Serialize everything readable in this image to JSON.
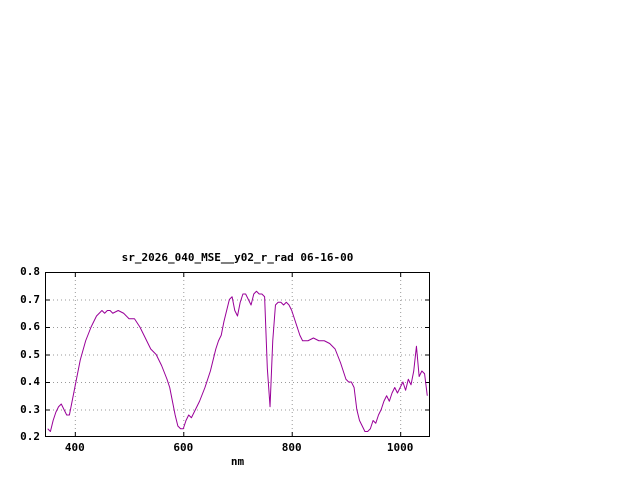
{
  "colors": {
    "line": "#990099",
    "grid": "#9a9a9a",
    "axis": "#000000",
    "background": "#ffffff",
    "text": "#000000"
  },
  "chart_data": {
    "type": "line",
    "title": "sr_2026_040_MSE__y02_r_rad 06-16-00",
    "xlabel": "nm",
    "ylabel": "",
    "xlim": [
      345,
      1055
    ],
    "ylim": [
      0.2,
      0.8
    ],
    "xticks": [
      400,
      600,
      800,
      1000
    ],
    "yticks": [
      0.2,
      0.3,
      0.4,
      0.5,
      0.6,
      0.7,
      0.8
    ],
    "grid": true,
    "legend": "none",
    "series": [
      {
        "name": "sr_2026_040_MSE__y02_r_rad 06-16-00",
        "color": "#990099",
        "x": [
          350,
          355,
          360,
          365,
          370,
          375,
          380,
          385,
          390,
          395,
          400,
          410,
          420,
          430,
          440,
          450,
          455,
          460,
          465,
          470,
          480,
          490,
          500,
          510,
          520,
          530,
          540,
          550,
          560,
          570,
          575,
          580,
          585,
          590,
          595,
          600,
          605,
          610,
          615,
          620,
          630,
          640,
          650,
          660,
          665,
          670,
          675,
          680,
          685,
          690,
          695,
          700,
          705,
          710,
          715,
          720,
          725,
          730,
          735,
          740,
          745,
          750,
          755,
          760,
          765,
          770,
          775,
          780,
          785,
          790,
          795,
          800,
          805,
          810,
          815,
          820,
          830,
          840,
          850,
          860,
          870,
          880,
          890,
          900,
          905,
          910,
          915,
          920,
          925,
          930,
          935,
          940,
          945,
          950,
          955,
          960,
          965,
          970,
          975,
          980,
          985,
          990,
          995,
          1000,
          1005,
          1010,
          1015,
          1020,
          1025,
          1030,
          1035,
          1040,
          1045,
          1050
        ],
        "y": [
          0.23,
          0.22,
          0.26,
          0.29,
          0.31,
          0.32,
          0.3,
          0.28,
          0.28,
          0.33,
          0.38,
          0.48,
          0.55,
          0.6,
          0.64,
          0.66,
          0.65,
          0.66,
          0.66,
          0.65,
          0.66,
          0.65,
          0.63,
          0.63,
          0.6,
          0.56,
          0.52,
          0.5,
          0.46,
          0.41,
          0.38,
          0.33,
          0.28,
          0.24,
          0.23,
          0.23,
          0.26,
          0.28,
          0.27,
          0.29,
          0.33,
          0.38,
          0.44,
          0.52,
          0.55,
          0.57,
          0.62,
          0.66,
          0.7,
          0.71,
          0.66,
          0.64,
          0.69,
          0.72,
          0.72,
          0.7,
          0.68,
          0.72,
          0.73,
          0.72,
          0.72,
          0.71,
          0.45,
          0.31,
          0.55,
          0.68,
          0.69,
          0.69,
          0.68,
          0.69,
          0.68,
          0.66,
          0.63,
          0.6,
          0.57,
          0.55,
          0.55,
          0.56,
          0.55,
          0.55,
          0.54,
          0.52,
          0.47,
          0.41,
          0.4,
          0.4,
          0.38,
          0.3,
          0.26,
          0.24,
          0.22,
          0.22,
          0.23,
          0.26,
          0.25,
          0.28,
          0.3,
          0.33,
          0.35,
          0.33,
          0.36,
          0.38,
          0.36,
          0.38,
          0.4,
          0.37,
          0.41,
          0.39,
          0.44,
          0.53,
          0.42,
          0.44,
          0.43,
          0.35
        ]
      }
    ]
  }
}
